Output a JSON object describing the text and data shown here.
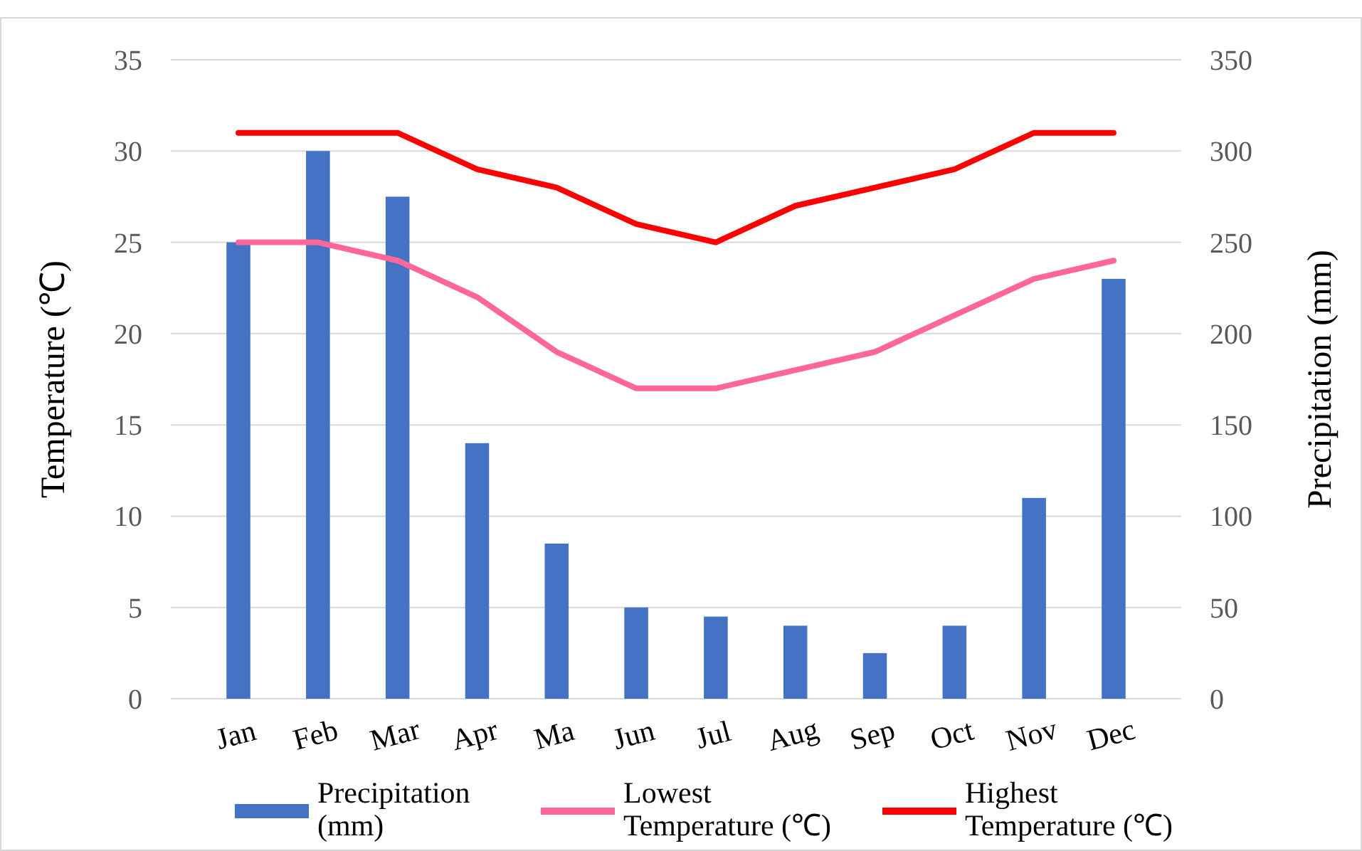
{
  "chart_data": {
    "type": "bar",
    "ylabel": "Temperature (℃)",
    "y2label": "Precipitation (mm)",
    "categories": [
      "Jan",
      "Feb",
      "Mar",
      "Apr",
      "Ma",
      "Jun",
      "Jul",
      "Aug",
      "Sep",
      "Oct",
      "Nov",
      "Dec"
    ],
    "series": [
      {
        "name": "Precipitation (mm)",
        "axis": "y2",
        "color": "#4472c4",
        "values": [
          250,
          300,
          275,
          140,
          85,
          50,
          45,
          40,
          25,
          40,
          110,
          230
        ]
      },
      {
        "name": "Lowest Temperature (℃)",
        "type": "line",
        "color": "#ff6699",
        "values": [
          25,
          25,
          24,
          22,
          19,
          17,
          17,
          18,
          19,
          21,
          23,
          24
        ]
      },
      {
        "name": "Highest Temperature (℃)",
        "type": "line",
        "color": "#ff0000",
        "values": [
          31,
          31,
          31,
          29,
          28,
          26,
          25,
          27,
          28,
          29,
          31,
          31
        ]
      }
    ],
    "ylim": [
      0,
      35
    ],
    "yticks": [
      0,
      5,
      10,
      15,
      20,
      25,
      30,
      35
    ],
    "y2lim": [
      0,
      350
    ],
    "y2ticks": [
      0,
      50,
      100,
      150,
      200,
      250,
      300,
      350
    ],
    "grid": "y",
    "legend": "bottom",
    "marker": "none",
    "line_style": "solid"
  }
}
